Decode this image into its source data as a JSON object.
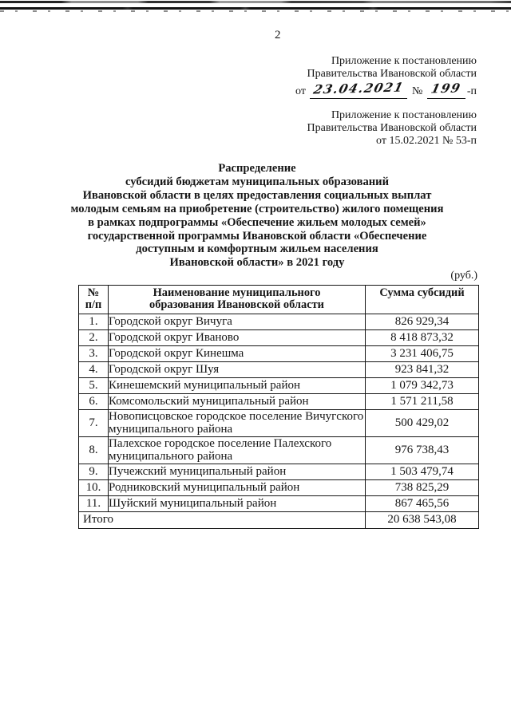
{
  "page": {
    "number": "2",
    "currency_note": "(руб.)"
  },
  "annex_current": {
    "line1": "Приложение к постановлению",
    "line2": "Правительства Ивановской области",
    "from_label": "от",
    "date_handwritten": "23.04.2021",
    "number_sign": "№",
    "number_handwritten": "199",
    "suffix": "-п"
  },
  "annex_original": {
    "line1": "Приложение к постановлению",
    "line2": "Правительства Ивановской области",
    "line3": "от 15.02.2021 № 53-п"
  },
  "title": {
    "lines": [
      "Распределение",
      "субсидий бюджетам муниципальных образований",
      "Ивановской области в целях предоставления социальных выплат",
      "молодым семьям на приобретение (строительство) жилого помещения",
      "в рамках подпрограммы «Обеспечение жильем молодых семей»",
      "государственной программы Ивановской области «Обеспечение",
      "доступным и комфортным жильем населения",
      "Ивановской области» в 2021 году"
    ]
  },
  "table": {
    "headers": {
      "num_line1": "№",
      "num_line2": "п/п",
      "name_line1": "Наименование муниципального",
      "name_line2": "образования Ивановской области",
      "sum": "Сумма субсидий"
    },
    "rows": [
      {
        "n": "1.",
        "name": "Городской округ Вичуга",
        "amount": "826 929,34"
      },
      {
        "n": "2.",
        "name": "Городской округ Иваново",
        "amount": "8 418 873,32"
      },
      {
        "n": "3.",
        "name": "Городской округ Кинешма",
        "amount": "3 231 406,75"
      },
      {
        "n": "4.",
        "name": "Городской округ Шуя",
        "amount": "923 841,32"
      },
      {
        "n": "5.",
        "name": "Кинешемский муниципальный район",
        "amount": "1 079 342,73"
      },
      {
        "n": "6.",
        "name": "Комсомольский муниципальный район",
        "amount": "1 571 211,58"
      },
      {
        "n": "7.",
        "name": "Новописцовское городское поселение Вичугского муниципального района",
        "amount": "500 429,02"
      },
      {
        "n": "8.",
        "name": "Палехское городское поселение Палехского муниципального района",
        "amount": "976 738,43"
      },
      {
        "n": "9.",
        "name": "Пучежский муниципальный район",
        "amount": "1 503 479,74"
      },
      {
        "n": "10.",
        "name": "Родниковский муниципальный район",
        "amount": "738 825,29"
      },
      {
        "n": "11.",
        "name": "Шуйский муниципальный район",
        "amount": "867 465,56"
      }
    ],
    "total": {
      "label": "Итого",
      "amount": "20 638 543,08"
    }
  }
}
